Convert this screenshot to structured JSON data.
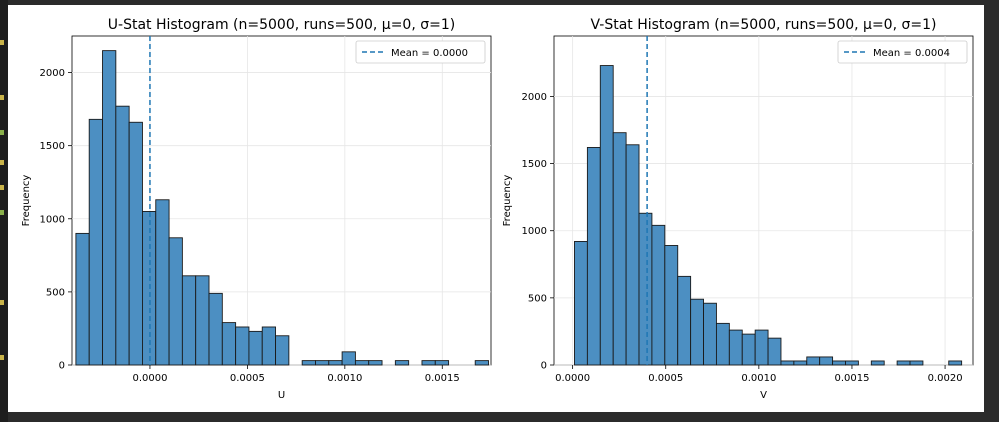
{
  "gutter_marks": [
    "#c9b44a",
    "#c9b44a",
    "#8ab04a",
    "#c9b44a",
    "#c9b44a",
    "#8ab04a",
    "#c9b44a",
    "#c9b44a"
  ],
  "colors": {
    "bar_fill": "#4c8fc2",
    "bar_edge": "#1a1a1a",
    "mean_line": "#1f77b4",
    "grid": "#e6e6e6",
    "gutter": "#1e1e1e",
    "page_bg": "#2b2b2b"
  },
  "chart_data": [
    {
      "type": "bar",
      "subtype": "histogram",
      "title": "U-Stat Histogram (n=5000, runs=500, μ=0, σ=1)",
      "xlabel": "U",
      "ylabel": "Frequency",
      "xlim": [
        -0.0004,
        0.00175
      ],
      "ylim": [
        0,
        2250
      ],
      "xticks": [
        0.0,
        0.0005,
        0.001,
        0.0015
      ],
      "xtick_labels": [
        "0.0000",
        "0.0005",
        "0.0010",
        "0.0015"
      ],
      "yticks": [
        0,
        500,
        1000,
        1500,
        2000
      ],
      "ytick_labels": [
        "0",
        "500",
        "1000",
        "1500",
        "2000"
      ],
      "bin_start": -0.00038,
      "bin_width": 6.83e-05,
      "values": [
        900,
        1680,
        2150,
        1770,
        1660,
        1050,
        1130,
        870,
        610,
        610,
        490,
        290,
        260,
        230,
        260,
        200,
        0,
        30,
        30,
        30,
        90,
        30,
        30,
        0,
        30,
        0,
        30,
        30,
        0,
        0,
        30
      ],
      "mean": {
        "value": 0.0,
        "label": "Mean = 0.0000"
      },
      "grid": true,
      "legend_position": "top-right"
    },
    {
      "type": "bar",
      "subtype": "histogram",
      "title": "V-Stat Histogram (n=5000, runs=500, μ=0, σ=1)",
      "xlabel": "V",
      "ylabel": "Frequency",
      "xlim": [
        -0.0001,
        0.00215
      ],
      "ylim": [
        0,
        2450
      ],
      "xticks": [
        0.0,
        0.0005,
        0.001,
        0.0015,
        0.002
      ],
      "xtick_labels": [
        "0.0000",
        "0.0005",
        "0.0010",
        "0.0015",
        "0.0020"
      ],
      "yticks": [
        0,
        500,
        1000,
        1500,
        2000
      ],
      "ytick_labels": [
        "0",
        "500",
        "1000",
        "1500",
        "2000"
      ],
      "bin_start": 1e-05,
      "bin_width": 6.93e-05,
      "values": [
        920,
        1620,
        2230,
        1730,
        1640,
        1130,
        1040,
        890,
        660,
        490,
        460,
        310,
        260,
        230,
        260,
        200,
        30,
        30,
        60,
        60,
        30,
        30,
        0,
        30,
        0,
        30,
        30,
        0,
        0,
        30
      ],
      "mean": {
        "value": 0.0004,
        "label": "Mean = 0.0004"
      },
      "grid": true,
      "legend_position": "top-right"
    }
  ]
}
